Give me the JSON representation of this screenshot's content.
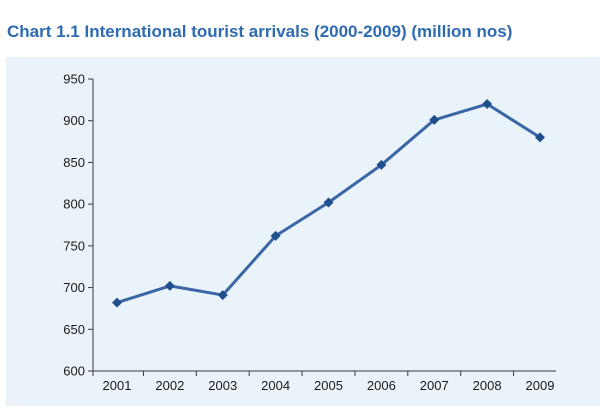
{
  "chart_data": {
    "type": "line",
    "title": "Chart 1.1 International tourist arrivals (2000-2009) (million nos)",
    "categories": [
      "2001",
      "2002",
      "2003",
      "2004",
      "2005",
      "2006",
      "2007",
      "2008",
      "2009"
    ],
    "series": [
      {
        "values": [
          682,
          702,
          691,
          762,
          802,
          847,
          901,
          920,
          880
        ]
      }
    ],
    "xlabel": "",
    "ylabel": "",
    "ylim": [
      600,
      950
    ],
    "yticks": [
      "950",
      "900",
      "850",
      "800",
      "750",
      "700",
      "650",
      "600"
    ],
    "grid": false,
    "legend": "none"
  },
  "colors": {
    "title": "#2e6bb1",
    "panel_background": "#ebf3fa",
    "line": "#3a66a7",
    "marker": "#1f4e8c",
    "axis": "#3a3a3a",
    "tick_text": "#1a1a1a"
  }
}
